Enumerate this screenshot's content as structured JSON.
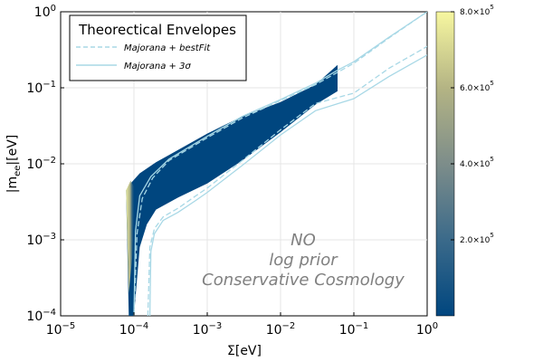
{
  "chart_data": {
    "type": "heatmap",
    "xlabel": "Σ[eV]",
    "ylabel": "|m_ee|[eV]",
    "xscale": "log",
    "yscale": "log",
    "xlim": [
      1e-05,
      1
    ],
    "ylim": [
      0.0001,
      1
    ],
    "xtick_labels": [
      {
        "base": "10",
        "exp": "−5"
      },
      {
        "base": "10",
        "exp": "−4"
      },
      {
        "base": "10",
        "exp": "−3"
      },
      {
        "base": "10",
        "exp": "−2"
      },
      {
        "base": "10",
        "exp": "−1"
      },
      {
        "base": "10",
        "exp": "0"
      }
    ],
    "ytick_labels": [
      {
        "base": "10",
        "exp": "−4"
      },
      {
        "base": "10",
        "exp": "−3"
      },
      {
        "base": "10",
        "exp": "−2"
      },
      {
        "base": "10",
        "exp": "−1"
      },
      {
        "base": "10",
        "exp": "0"
      }
    ],
    "grid": true,
    "legend": {
      "title": "Theorectical Envelopes",
      "placement": "top-left",
      "entries": [
        {
          "label": "Majorana + bestFit",
          "style": "dashed",
          "color": "#a8d8e6"
        },
        {
          "label": "Majorana + 3σ",
          "style": "solid",
          "color": "#a8d8e6"
        }
      ]
    },
    "colorbar": {
      "range": [
        0,
        800000
      ],
      "tick_values": [
        200000,
        400000,
        600000,
        800000
      ],
      "tick_labels": [
        {
          "mant": "2.0×10",
          "exp": "5"
        },
        {
          "mant": "4.0×10",
          "exp": "5"
        },
        {
          "mant": "6.0×10",
          "exp": "5"
        },
        {
          "mant": "8.0×10",
          "exp": "5"
        }
      ],
      "colors": [
        "#00467f",
        "#3b6a8a",
        "#7d8d8a",
        "#b4b484",
        "#f7f7a0"
      ]
    },
    "annotations": [
      "NO",
      "log prior",
      "Conservative Cosmology"
    ],
    "envelopes": {
      "bestfit_outer": [
        [
          0.0001,
          0.0001
        ],
        [
          0.00011,
          0.0012
        ],
        [
          0.00013,
          0.0035
        ],
        [
          0.00018,
          0.0065
        ],
        [
          0.0003,
          0.011
        ],
        [
          0.001,
          0.022
        ],
        [
          0.003,
          0.04
        ],
        [
          0.01,
          0.068
        ],
        [
          0.03,
          0.11
        ],
        [
          0.06,
          0.16
        ],
        [
          0.1,
          0.21
        ],
        [
          0.3,
          0.45
        ],
        [
          1,
          1
        ]
      ],
      "bestfit_inner": [
        [
          0.000155,
          0.0001
        ],
        [
          0.000165,
          0.0008
        ],
        [
          0.00019,
          0.0014
        ],
        [
          0.00025,
          0.002
        ],
        [
          0.0004,
          0.0026
        ],
        [
          0.0007,
          0.0038
        ],
        [
          0.001,
          0.0048
        ],
        [
          0.003,
          0.011
        ],
        [
          0.01,
          0.028
        ],
        [
          0.03,
          0.062
        ],
        [
          0.1,
          0.085
        ],
        [
          0.3,
          0.18
        ],
        [
          1,
          0.35
        ]
      ],
      "three_sigma_outer": [
        [
          0.0001,
          0.0001
        ],
        [
          0.000105,
          0.0013
        ],
        [
          0.00012,
          0.0038
        ],
        [
          0.00017,
          0.0068
        ],
        [
          0.0003,
          0.0115
        ],
        [
          0.001,
          0.023
        ],
        [
          0.003,
          0.042
        ],
        [
          0.01,
          0.07
        ],
        [
          0.03,
          0.115
        ],
        [
          0.06,
          0.17
        ],
        [
          0.1,
          0.22
        ],
        [
          0.3,
          0.46
        ],
        [
          1,
          1
        ]
      ],
      "three_sigma_inner": [
        [
          0.000165,
          0.0001
        ],
        [
          0.00017,
          0.0007
        ],
        [
          0.00019,
          0.0012
        ],
        [
          0.00025,
          0.0018
        ],
        [
          0.0004,
          0.0023
        ],
        [
          0.0007,
          0.0033
        ],
        [
          0.001,
          0.0042
        ],
        [
          0.003,
          0.0095
        ],
        [
          0.01,
          0.024
        ],
        [
          0.03,
          0.05
        ],
        [
          0.1,
          0.072
        ],
        [
          0.3,
          0.14
        ],
        [
          1,
          0.27
        ]
      ]
    },
    "density_region": {
      "upper": [
        [
          7.8e-05,
          0.0045
        ],
        [
          9e-05,
          0.0055
        ],
        [
          0.00012,
          0.0075
        ],
        [
          0.0002,
          0.0105
        ],
        [
          0.0003,
          0.013
        ],
        [
          0.001,
          0.025
        ],
        [
          0.003,
          0.042
        ],
        [
          0.01,
          0.065
        ],
        [
          0.03,
          0.11
        ],
        [
          0.06,
          0.2
        ]
      ],
      "lower": [
        [
          8.5e-05,
          0.0001
        ],
        [
          0.0001,
          0.0001
        ],
        [
          0.00012,
          0.0008
        ],
        [
          0.00015,
          0.0016
        ],
        [
          0.0002,
          0.0025
        ],
        [
          0.0004,
          0.0036
        ],
        [
          0.001,
          0.0055
        ],
        [
          0.003,
          0.011
        ],
        [
          0.01,
          0.026
        ],
        [
          0.03,
          0.06
        ],
        [
          0.06,
          0.09
        ]
      ],
      "hotspot": [
        [
          7.8e-05,
          0.0045
        ],
        [
          9e-05,
          0.006
        ],
        [
          0.0001,
          0.005
        ],
        [
          0.0001,
          0.002
        ],
        [
          9.5e-05,
          0.0006
        ],
        [
          8.5e-05,
          0.0002
        ]
      ]
    }
  }
}
